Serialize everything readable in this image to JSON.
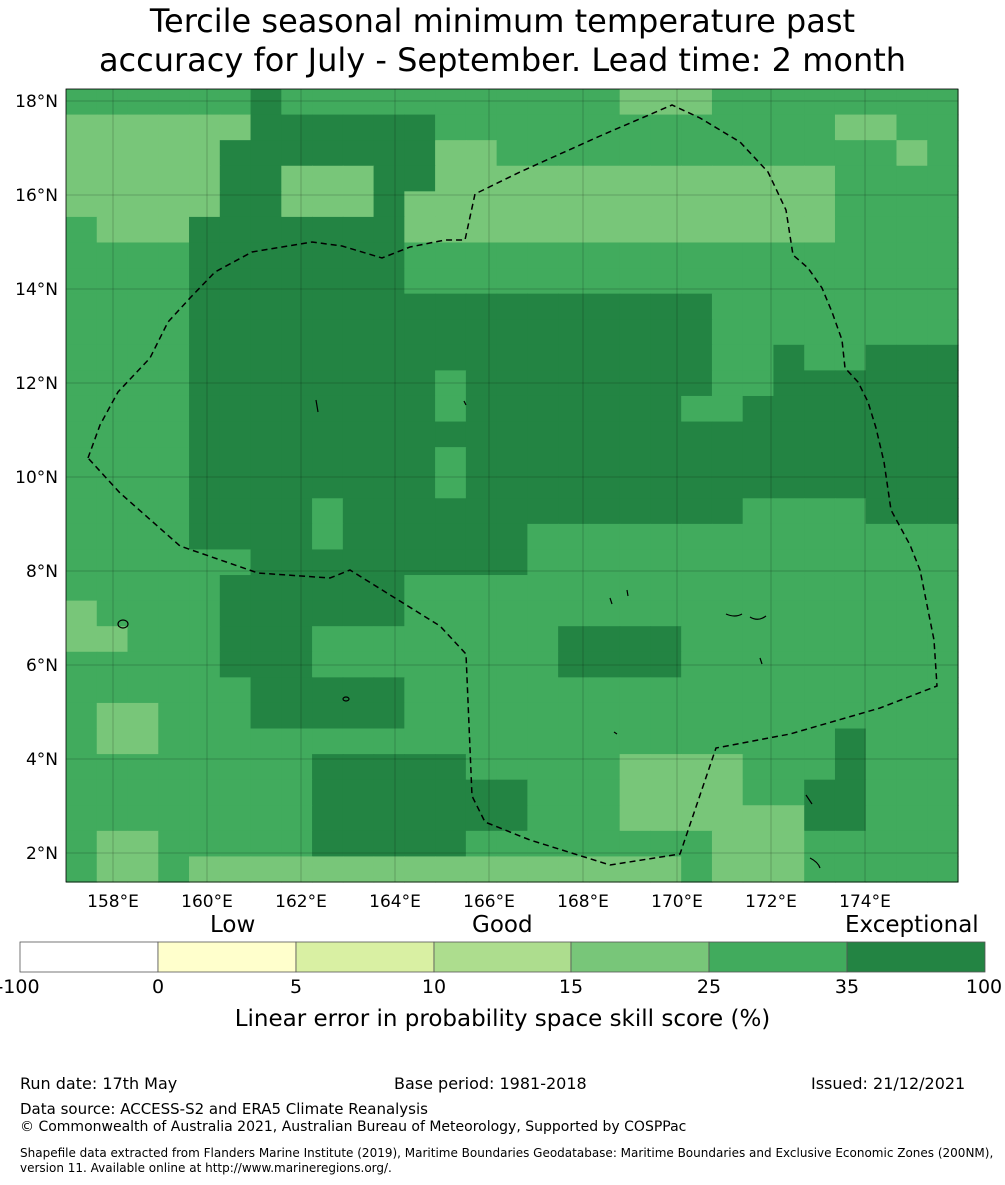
{
  "title_line1": "Tercile seasonal minimum temperature past",
  "title_line2": "accuracy for July - September. Lead time: 2 month",
  "map": {
    "lon_labels": [
      "158°E",
      "160°E",
      "162°E",
      "164°E",
      "166°E",
      "168°E",
      "170°E",
      "172°E",
      "174°E"
    ],
    "lat_labels": [
      "18°N",
      "16°N",
      "14°N",
      "12°N",
      "10°N",
      "8°N",
      "6°N",
      "4°N",
      "2°N"
    ],
    "colors": {
      "a": "#78c679",
      "b": "#41ab5d",
      "c": "#238443"
    },
    "grid": [
      "bbbbbbcbbbbbbbbbbbbbbbbbbbbbb",
      "aaaaaaabbbbbbbbbbbbbbbbbbbbbb",
      "aaaaaaaaaaaaaabbbbbbbbbbbbbab",
      "aaaaaaaaaaaaaaaaaaaaaaaaabbbb",
      "aaaaaaaaaaaaaaaaaaaaaaaaabbbb",
      "baaaaaaaaaaaaaaaaaaaaaaaabbbb",
      "bbbbbbbbbbbbbbbbbbbbbbbbbbbbb",
      "bbbbbbbbbbbbbbbbbbbbbbbbbbbbb",
      "bbbbbbbbbbbbbbbbbbbbbbbbbbbbb",
      "bbbbbbbbbbbbbbbbbbbbbbbbbbbbb",
      "bbbbbbbbbbbbbbbbbbbbbbbbbbbbb",
      "bbbbbbbbbbbbbbbbbbbbbbbbbbbbb",
      "bbbbbbbbbbbbbbbbbbbbbbbbbbbbb",
      "bbbbbbbbbbbbbbbbbbbbbbbbbbbbb",
      "bbbbbbbbbbbbbbbbbbbbbbbbbbbbb",
      "bbbbbbbbbbbbbbbbbbbbbbbbbbbbb",
      "bbbbbbbbbbbbbbbbbbbbbbbbbbbbb",
      "bbbbbbbbbbbbbbbbbbbbbbbbbbbbb",
      "bbbbbbbbbbbbbbbbbbbbbbbbbbbbb",
      "bbbbbbbbbbbbbbbbbbbbbbbbbbbbb",
      "abbbbbbbbbbbbbbbbbbbbbbbbbbbb",
      "aabbbbbbbbbbbbbbbbbbbbbbbbbbb",
      "bbbbbbbbbbbbbbbbbbbbbbbbbbbbb",
      "bbbbbbbbbbbbbbbbbbbbbbbbbbbbb",
      "bbbbbbbbbbbbbbbbbbbbbbbbbbbbb",
      "bbbbbbbbbbbbbbbbbbbbbbbbbbbbb",
      "bbbbbbbbbbbbbbbbbbbbbbbbbbbbb",
      "bbbbbbbbbbbbbbbbbbbbbbbbbbbbb",
      "bbbbbbbbbbbbbbbbbbbbbbbbbbbbb",
      "bbbbbbbbbbbbbbbbbbbbbbbbbbbbb",
      "bbbbbbbbbbbbbbbbbbbbbbbbbbbbb"
    ]
  },
  "colorbar": {
    "categories": [
      "Low",
      "Good",
      "Exceptional"
    ],
    "ticks": [
      "-100",
      "0",
      "5",
      "10",
      "15",
      "25",
      "35",
      "100"
    ],
    "colors": [
      "#ffffff",
      "#ffffcc",
      "#d9f0a3",
      "#addd8e",
      "#78c679",
      "#41ab5d",
      "#238443"
    ],
    "label": "Linear error in probability space skill score (%)"
  },
  "footer": {
    "run_date": "Run date: 17th May",
    "base_period": "Base period: 1981-2018",
    "issued": "Issued: 21/12/2021",
    "data_source": "Data source: ACCESS-S2 and ERA5 Climate Reanalysis",
    "copyright": "© Commonwealth of Australia 2021, Australian Bureau of Meteorology, Supported by COSPPac",
    "shapefile_line1": "Shapefile data extracted from Flanders Marine Institute (2019), Maritime Boundaries Geodatabase: Maritime Boundaries and Exclusive Economic Zones (200NM),",
    "shapefile_line2": "version 11. Available online at http://www.marineregions.org/."
  }
}
